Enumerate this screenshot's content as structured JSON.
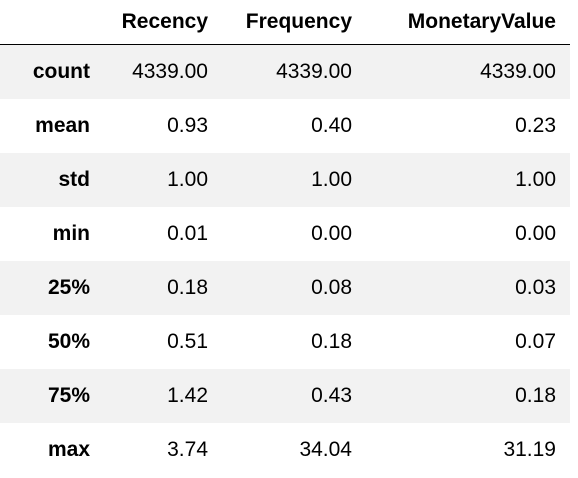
{
  "table": {
    "columns": [
      "",
      "Recency",
      "Frequency",
      "MonetaryValue"
    ],
    "rows": [
      {
        "label": "count",
        "values": [
          "4339.00",
          "4339.00",
          "4339.00"
        ]
      },
      {
        "label": "mean",
        "values": [
          "0.93",
          "0.40",
          "0.23"
        ]
      },
      {
        "label": "std",
        "values": [
          "1.00",
          "1.00",
          "1.00"
        ]
      },
      {
        "label": "min",
        "values": [
          "0.01",
          "0.00",
          "0.00"
        ]
      },
      {
        "label": "25%",
        "values": [
          "0.18",
          "0.08",
          "0.03"
        ]
      },
      {
        "label": "50%",
        "values": [
          "0.51",
          "0.18",
          "0.07"
        ]
      },
      {
        "label": "75%",
        "values": [
          "1.42",
          "0.43",
          "0.18"
        ]
      },
      {
        "label": "max",
        "values": [
          "3.74",
          "34.04",
          "31.19"
        ]
      }
    ]
  },
  "colors": {
    "stripe": "#f2f2f2",
    "background": "#ffffff",
    "text": "#000000"
  }
}
